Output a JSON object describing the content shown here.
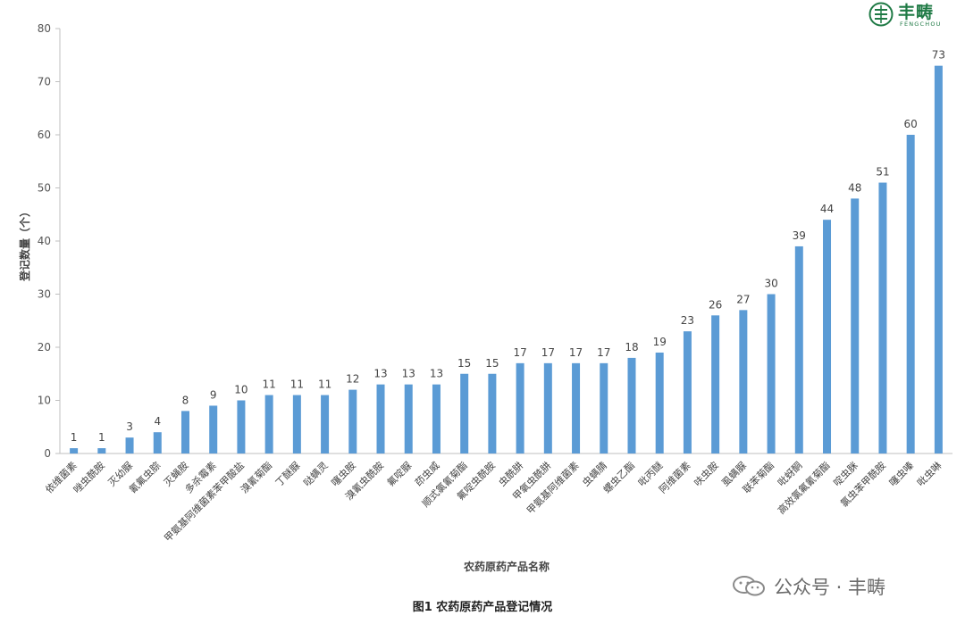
{
  "logo": {
    "name": "丰畴",
    "subtitle": "FENGCHOU"
  },
  "watermark": {
    "text": "公众号 · 丰畴"
  },
  "caption": "图1 农药原药产品登记情况",
  "colors": {
    "bar": "#5b9bd5",
    "axis": "#bfbfbf",
    "logo": "#1f7a45"
  },
  "chart_data": {
    "type": "bar",
    "title": "图1 农药原药产品登记情况",
    "xlabel": "农药原药产品名称",
    "ylabel": "登记数量（个）",
    "ylim": [
      0,
      80
    ],
    "yticks": [
      0,
      10,
      20,
      30,
      40,
      50,
      60,
      70,
      80
    ],
    "grid": false,
    "categories": [
      "依维菌素",
      "唑虫酰胺",
      "灭幼脲",
      "氰氟虫腙",
      "灭蝇胺",
      "多杀霉素",
      "甲氨基阿维菌素苯甲酸盐",
      "溴氰菊酯",
      "丁醚脲",
      "哒螨灵",
      "噻虫胺",
      "溴氰虫酰胺",
      "氟啶脲",
      "茚虫威",
      "顺式氯氰菊酯",
      "氟啶虫酰胺",
      "虫酰肼",
      "甲氧虫酰肼",
      "甲氨基阿维菌素",
      "虫螨腈",
      "螺虫乙酯",
      "吡丙醚",
      "阿维菌素",
      "呋虫胺",
      "虱螨脲",
      "联苯菊酯",
      "吡蚜酮",
      "高效氯氟氰菊酯",
      "啶虫脒",
      "氯虫苯甲酰胺",
      "噻虫嗪",
      "吡虫啉"
    ],
    "values": [
      1,
      1,
      3,
      4,
      8,
      9,
      10,
      11,
      11,
      11,
      12,
      13,
      13,
      13,
      15,
      15,
      17,
      17,
      17,
      17,
      18,
      19,
      23,
      26,
      27,
      30,
      39,
      44,
      48,
      51,
      60,
      73
    ]
  }
}
